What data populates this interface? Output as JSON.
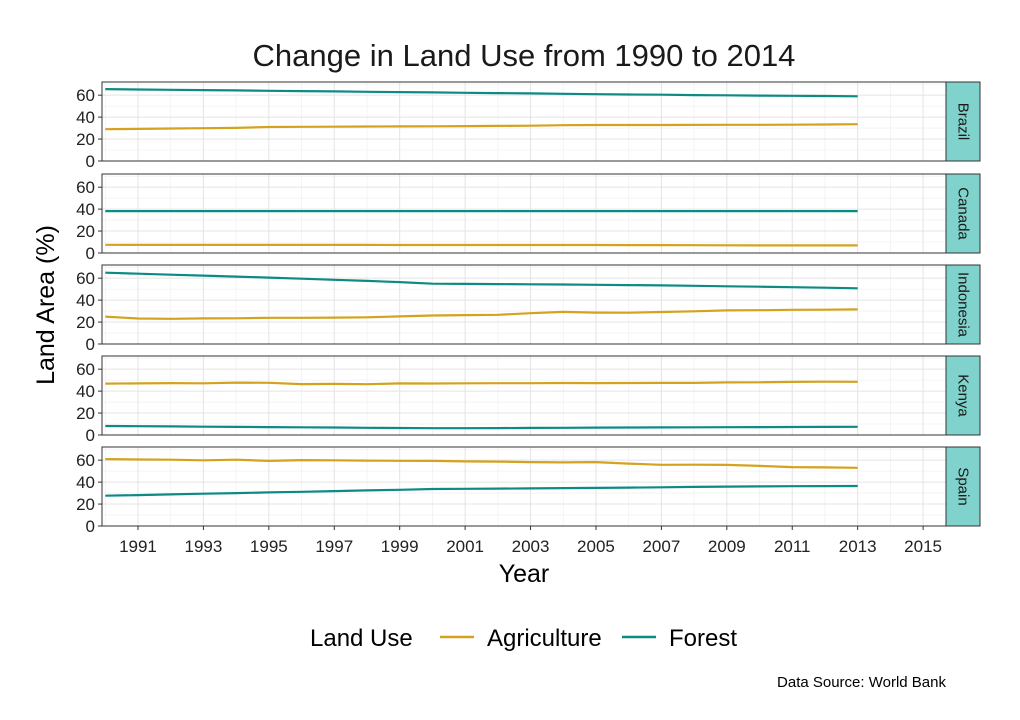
{
  "chart_data": {
    "type": "line",
    "title": "Change in Land Use from 1990 to 2014",
    "xlabel": "Year",
    "ylabel": "Land Area (%)",
    "xlim": [
      1989.9,
      2015.7
    ],
    "ylim": [
      0,
      72
    ],
    "x_ticks": [
      1991,
      1993,
      1995,
      1997,
      1999,
      2001,
      2003,
      2005,
      2007,
      2009,
      2011,
      2013,
      2015
    ],
    "y_ticks": [
      0,
      20,
      40,
      60
    ],
    "grid": true,
    "legend": {
      "title": "Land Use",
      "position": "bottom",
      "entries": [
        "Agriculture",
        "Forest"
      ]
    },
    "caption": "Data Source: World Bank",
    "colors": {
      "Agriculture": "#d4a21f",
      "Forest": "#0e8a86",
      "strip": "#7fd3cc"
    },
    "x": [
      1990,
      1991,
      1992,
      1993,
      1994,
      1995,
      1996,
      1997,
      1998,
      1999,
      2000,
      2001,
      2002,
      2003,
      2004,
      2005,
      2006,
      2007,
      2008,
      2009,
      2010,
      2011,
      2012,
      2013
    ],
    "panels": [
      {
        "facet": "Brazil",
        "series": [
          {
            "name": "Agriculture",
            "values": [
              29,
              29.3,
              29.6,
              29.9,
              30.2,
              31,
              31.2,
              31.3,
              31.4,
              31.5,
              31.6,
              31.8,
              32,
              32.2,
              32.6,
              32.8,
              32.8,
              32.8,
              32.9,
              33,
              33,
              33.1,
              33.3,
              33.5
            ]
          },
          {
            "name": "Forest",
            "values": [
              65.5,
              65.2,
              64.9,
              64.6,
              64.3,
              64,
              63.7,
              63.4,
              63.1,
              62.8,
              62.5,
              62.2,
              61.9,
              61.6,
              61.2,
              60.9,
              60.6,
              60.4,
              60.1,
              59.9,
              59.6,
              59.4,
              59.2,
              59
            ]
          }
        ]
      },
      {
        "facet": "Canada",
        "series": [
          {
            "name": "Agriculture",
            "values": [
              7.5,
              7.4,
              7.4,
              7.4,
              7.4,
              7.4,
              7.4,
              7.4,
              7.4,
              7.3,
              7.3,
              7.3,
              7.3,
              7.3,
              7.3,
              7.3,
              7.2,
              7.2,
              7.1,
              7,
              6.9,
              6.9,
              6.9,
              6.9
            ]
          },
          {
            "name": "Forest",
            "values": [
              38.2,
              38.2,
              38.2,
              38.2,
              38.2,
              38.2,
              38.2,
              38.2,
              38.2,
              38.2,
              38.2,
              38.2,
              38.2,
              38.2,
              38.2,
              38.2,
              38.2,
              38.2,
              38.2,
              38.2,
              38.2,
              38.2,
              38.2,
              38.2
            ]
          }
        ]
      },
      {
        "facet": "Indonesia",
        "series": [
          {
            "name": "Agriculture",
            "values": [
              25,
              23.2,
              23,
              23.3,
              23.4,
              23.9,
              23.9,
              24.1,
              24.3,
              25.2,
              26,
              26.3,
              26.6,
              28.1,
              29.3,
              28.6,
              28.5,
              29.2,
              29.8,
              30.6,
              30.8,
              31.2,
              31.3,
              31.5
            ]
          },
          {
            "name": "Forest",
            "values": [
              65,
              64.1,
              63.2,
              62.3,
              61.4,
              60.5,
              59.5,
              58.5,
              57.5,
              56.4,
              55,
              54.8,
              54.6,
              54.4,
              54.2,
              54,
              53.7,
              53.4,
              53,
              52.6,
              52.2,
              51.8,
              51.3,
              50.8
            ]
          }
        ]
      },
      {
        "facet": "Kenya",
        "series": [
          {
            "name": "Agriculture",
            "values": [
              46.8,
              47,
              47.3,
              47.1,
              47.8,
              47.6,
              46.4,
              46.6,
              46.3,
              47,
              46.9,
              47.1,
              47.2,
              47.2,
              47.4,
              47.3,
              47.4,
              47.5,
              47.5,
              47.9,
              48,
              48.4,
              48.6,
              48.5
            ]
          },
          {
            "name": "Forest",
            "values": [
              8.2,
              8,
              7.8,
              7.6,
              7.4,
              7.2,
              7,
              6.8,
              6.6,
              6.4,
              6.2,
              6.2,
              6.3,
              6.5,
              6.6,
              6.7,
              6.8,
              6.9,
              7,
              7.1,
              7.2,
              7.3,
              7.4,
              7.5
            ]
          }
        ]
      },
      {
        "facet": "Spain",
        "series": [
          {
            "name": "Agriculture",
            "values": [
              61,
              60.6,
              60.4,
              59.9,
              60.4,
              59.3,
              60.1,
              59.9,
              59.6,
              59.4,
              59.3,
              58.9,
              58.7,
              58.2,
              58,
              58.2,
              56.9,
              55.8,
              55.9,
              55.7,
              54.8,
              53.7,
              53.4,
              53
            ]
          },
          {
            "name": "Forest",
            "values": [
              27.6,
              28.2,
              28.8,
              29.4,
              30,
              30.6,
              31.2,
              31.8,
              32.4,
              33,
              33.7,
              33.9,
              34.1,
              34.3,
              34.5,
              34.7,
              35,
              35.3,
              35.6,
              35.9,
              36.1,
              36.3,
              36.4,
              36.5
            ]
          }
        ]
      }
    ]
  }
}
